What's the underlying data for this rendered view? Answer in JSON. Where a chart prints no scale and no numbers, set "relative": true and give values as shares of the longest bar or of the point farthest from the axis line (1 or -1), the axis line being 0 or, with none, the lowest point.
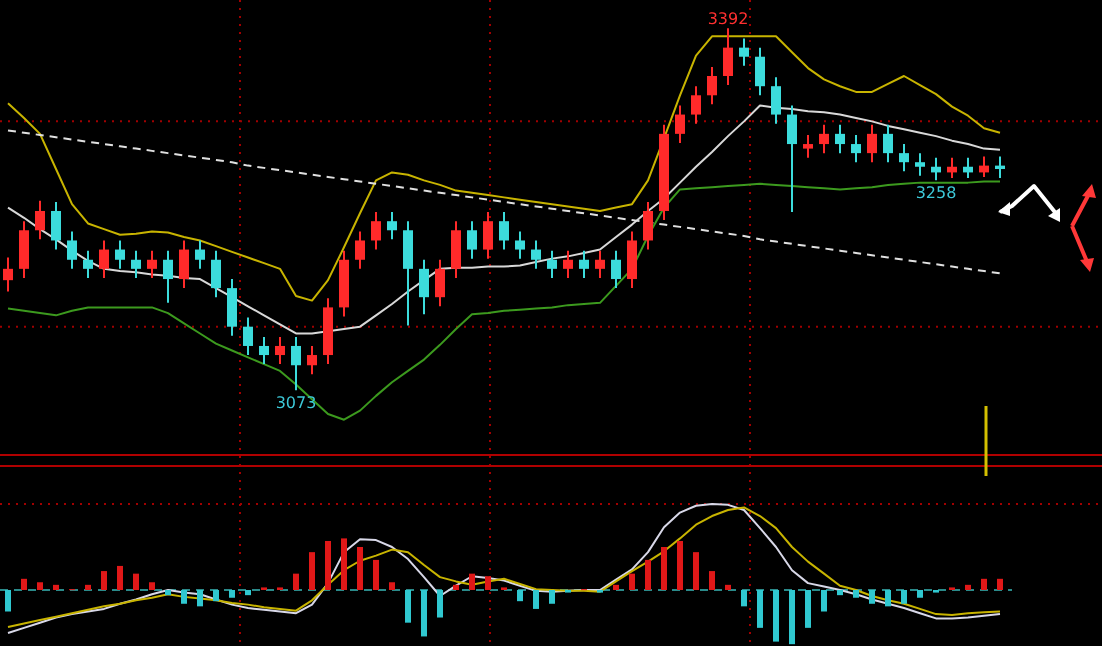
{
  "chart_data": [
    {
      "type": "candlestick",
      "grid": "y",
      "ylim": [
        3015,
        3417
      ],
      "yticks": [
        {
          "value": 3129,
          "label": null
        },
        {
          "value": 3310,
          "label": null
        }
      ],
      "categories": [
        null,
        null,
        null,
        null,
        null,
        null,
        null,
        null,
        null,
        null,
        null,
        null,
        null,
        null,
        null,
        null,
        null,
        null,
        null,
        null,
        null,
        null,
        null,
        null,
        null,
        null,
        null,
        null,
        null,
        null,
        null,
        null,
        null,
        null,
        null,
        null,
        null,
        null,
        null,
        null,
        null,
        null,
        null,
        null,
        null,
        null,
        null,
        null,
        null,
        null,
        null,
        null,
        null,
        null,
        null,
        null,
        null,
        null,
        null,
        null,
        null,
        null,
        null
      ],
      "ohlc": [
        [
          3170,
          3190,
          3160,
          3180
        ],
        [
          3180,
          3222,
          3172,
          3214
        ],
        [
          3214,
          3240,
          3206,
          3231
        ],
        [
          3231,
          3239,
          3197,
          3205
        ],
        [
          3205,
          3213,
          3180,
          3188
        ],
        [
          3188,
          3196,
          3172,
          3180
        ],
        [
          3180,
          3205,
          3172,
          3197
        ],
        [
          3197,
          3205,
          3180,
          3188
        ],
        [
          3188,
          3196,
          3172,
          3180
        ],
        [
          3180,
          3196,
          3172,
          3188
        ],
        [
          3188,
          3196,
          3150,
          3171
        ],
        [
          3171,
          3205,
          3163,
          3197
        ],
        [
          3197,
          3205,
          3180,
          3188
        ],
        [
          3188,
          3196,
          3155,
          3163
        ],
        [
          3163,
          3171,
          3121,
          3129
        ],
        [
          3129,
          3137,
          3104,
          3112
        ],
        [
          3112,
          3120,
          3096,
          3104
        ],
        [
          3104,
          3120,
          3096,
          3112
        ],
        [
          3112,
          3120,
          3073,
          3095
        ],
        [
          3095,
          3112,
          3087,
          3104
        ],
        [
          3104,
          3154,
          3096,
          3146
        ],
        [
          3146,
          3196,
          3138,
          3188
        ],
        [
          3188,
          3213,
          3180,
          3205
        ],
        [
          3205,
          3230,
          3197,
          3222
        ],
        [
          3222,
          3230,
          3206,
          3214
        ],
        [
          3214,
          3222,
          3130,
          3180
        ],
        [
          3180,
          3188,
          3140,
          3155
        ],
        [
          3155,
          3188,
          3147,
          3180
        ],
        [
          3180,
          3222,
          3172,
          3214
        ],
        [
          3214,
          3222,
          3189,
          3197
        ],
        [
          3197,
          3230,
          3189,
          3222
        ],
        [
          3222,
          3230,
          3197,
          3205
        ],
        [
          3205,
          3213,
          3189,
          3197
        ],
        [
          3197,
          3205,
          3180,
          3188
        ],
        [
          3188,
          3196,
          3172,
          3180
        ],
        [
          3180,
          3196,
          3172,
          3188
        ],
        [
          3188,
          3196,
          3172,
          3180
        ],
        [
          3180,
          3196,
          3172,
          3188
        ],
        [
          3188,
          3196,
          3163,
          3171
        ],
        [
          3171,
          3213,
          3163,
          3205
        ],
        [
          3205,
          3239,
          3197,
          3231
        ],
        [
          3231,
          3307,
          3223,
          3299
        ],
        [
          3299,
          3324,
          3291,
          3316
        ],
        [
          3316,
          3341,
          3308,
          3333
        ],
        [
          3333,
          3358,
          3325,
          3350
        ],
        [
          3350,
          3392,
          3342,
          3375
        ],
        [
          3375,
          3383,
          3359,
          3367
        ],
        [
          3367,
          3375,
          3333,
          3341
        ],
        [
          3341,
          3349,
          3308,
          3316
        ],
        [
          3316,
          3324,
          3230,
          3290
        ],
        [
          3286,
          3298,
          3278,
          3290
        ],
        [
          3290,
          3307,
          3282,
          3299
        ],
        [
          3299,
          3307,
          3282,
          3290
        ],
        [
          3290,
          3298,
          3274,
          3282
        ],
        [
          3282,
          3307,
          3274,
          3299
        ],
        [
          3299,
          3307,
          3274,
          3282
        ],
        [
          3282,
          3290,
          3266,
          3274
        ],
        [
          3274,
          3282,
          3262,
          3270
        ],
        [
          3270,
          3278,
          3258,
          3265
        ],
        [
          3265,
          3278,
          3260,
          3270
        ],
        [
          3270,
          3278,
          3260,
          3265
        ],
        [
          3265,
          3279,
          3261,
          3271
        ],
        [
          3271,
          3279,
          3260,
          3268
        ]
      ],
      "series": [
        {
          "type": "line",
          "color": "#d8d8d8",
          "values": [
            3234,
            3225,
            3215,
            3206,
            3196,
            3187,
            3180,
            3178,
            3177,
            3175,
            3174,
            3172,
            3171,
            3163,
            3155,
            3147,
            3139,
            3131,
            3123,
            3123,
            3125,
            3127,
            3129,
            3139,
            3149,
            3160,
            3170,
            3180,
            3181,
            3181,
            3182,
            3182,
            3183,
            3186,
            3189,
            3191,
            3194,
            3197,
            3208,
            3219,
            3231,
            3242,
            3256,
            3270,
            3283,
            3297,
            3310,
            3324,
            3322,
            3321,
            3319,
            3318,
            3316,
            3313,
            3310,
            3306,
            3303,
            3300,
            3297,
            3293,
            3290,
            3286,
            3285
          ]
        },
        {
          "type": "line",
          "color": "#c8b400",
          "values": [
            3326,
            3313,
            3299,
            3268,
            3237,
            3220,
            3215,
            3210,
            3211,
            3213,
            3212,
            3208,
            3205,
            3200,
            3195,
            3190,
            3185,
            3180,
            3156,
            3152,
            3170,
            3199,
            3229,
            3258,
            3265,
            3263,
            3258,
            3254,
            3249,
            3247,
            3245,
            3243,
            3241,
            3239,
            3237,
            3235,
            3233,
            3231,
            3234,
            3237,
            3258,
            3295,
            3333,
            3368,
            3385,
            3385,
            3385,
            3385,
            3385,
            3371,
            3357,
            3347,
            3341,
            3336,
            3336,
            3343,
            3350,
            3342,
            3334,
            3323,
            3315,
            3304,
            3300
          ]
        },
        {
          "type": "line",
          "color": "#3c9a1e",
          "values": [
            3145,
            3143,
            3141,
            3139,
            3143,
            3146,
            3146,
            3146,
            3146,
            3146,
            3141,
            3132,
            3123,
            3114,
            3108,
            3102,
            3096,
            3090,
            3078,
            3065,
            3052,
            3047,
            3055,
            3068,
            3080,
            3090,
            3100,
            3113,
            3127,
            3140,
            3141,
            3143,
            3144,
            3145,
            3146,
            3148,
            3149,
            3150,
            3165,
            3180,
            3209,
            3234,
            3250,
            3251,
            3252,
            3253,
            3254,
            3255,
            3254,
            3253,
            3252,
            3251,
            3250,
            3251,
            3252,
            3254,
            3255,
            3256,
            3256,
            3256,
            3256,
            3257,
            3257
          ]
        },
        {
          "type": "line",
          "color": "#e0e0e0",
          "line_style": "dashed",
          "values": [
            3302,
            3300,
            3298,
            3296,
            3294,
            3292,
            3290,
            3288,
            3286,
            3284,
            3282,
            3280,
            3278,
            3276,
            3274,
            3271,
            3269,
            3267,
            3265,
            3263,
            3261,
            3259,
            3257,
            3255,
            3253,
            3251,
            3249,
            3247,
            3245,
            3243,
            3241,
            3239,
            3237,
            3235,
            3233,
            3231,
            3229,
            3227,
            3225,
            3223,
            3221,
            3219,
            3217,
            3215,
            3213,
            3211,
            3209,
            3206,
            3204,
            3202,
            3200,
            3198,
            3196,
            3194,
            3192,
            3190,
            3188,
            3186,
            3184,
            3182,
            3180,
            3178,
            3176
          ]
        }
      ],
      "annotations": [
        {
          "text": "3073",
          "y": 3073
        },
        {
          "text": "3392",
          "y": 3392
        },
        {
          "text": "3258",
          "y": 3258
        }
      ]
    },
    {
      "type": "bar",
      "relative": true,
      "ref_lines": [
        {
          "axis": "y",
          "value": 0,
          "color": "#2a8a8a",
          "line_style": "dashed"
        }
      ],
      "colors": [
        "#30c8d0",
        "#e01818",
        "#e01818",
        "#e01818",
        "#e01818",
        "#e01818",
        "#e01818",
        "#e01818",
        "#e01818",
        "#e01818",
        "#30c8d0",
        "#30c8d0",
        "#30c8d0",
        "#30c8d0",
        "#30c8d0",
        "#30c8d0",
        "#e01818",
        "#e01818",
        "#e01818",
        "#e01818",
        "#e01818",
        "#e01818",
        "#e01818",
        "#e01818",
        "#e01818",
        "#30c8d0",
        "#30c8d0",
        "#30c8d0",
        "#e01818",
        "#e01818",
        "#e01818",
        "#e01818",
        "#30c8d0",
        "#30c8d0",
        "#30c8d0",
        "#30c8d0",
        "#e01818",
        "#30c8d0",
        "#e01818",
        "#e01818",
        "#e01818",
        "#e01818",
        "#e01818",
        "#e01818",
        "#e01818",
        "#e01818",
        "#30c8d0",
        "#30c8d0",
        "#30c8d0",
        "#30c8d0",
        "#30c8d0",
        "#30c8d0",
        "#30c8d0",
        "#30c8d0",
        "#30c8d0",
        "#30c8d0",
        "#30c8d0",
        "#30c8d0",
        "#30c8d0",
        "#e01818",
        "#e01818",
        "#e01818",
        "#e01818"
      ],
      "categories": [
        null,
        null,
        null,
        null,
        null,
        null,
        null,
        null,
        null,
        null,
        null,
        null,
        null,
        null,
        null,
        null,
        null,
        null,
        null,
        null,
        null,
        null,
        null,
        null,
        null,
        null,
        null,
        null,
        null,
        null,
        null,
        null,
        null,
        null,
        null,
        null,
        null,
        null,
        null,
        null,
        null,
        null,
        null,
        null,
        null,
        null,
        null,
        null,
        null,
        null,
        null,
        null,
        null,
        null,
        null,
        null,
        null,
        null,
        null,
        null,
        null,
        null,
        null
      ],
      "values": [
        -0.25,
        0.13,
        0.09,
        0.06,
        0.01,
        0.06,
        0.22,
        0.28,
        0.19,
        0.09,
        -0.06,
        -0.16,
        -0.19,
        -0.13,
        -0.09,
        -0.06,
        0.03,
        0.03,
        0.19,
        0.44,
        0.57,
        0.6,
        0.5,
        0.35,
        0.09,
        -0.38,
        -0.54,
        -0.32,
        0.06,
        0.19,
        0.16,
        0.03,
        -0.13,
        -0.22,
        -0.16,
        -0.03,
        0.01,
        -0.03,
        0.06,
        0.19,
        0.35,
        0.5,
        0.57,
        0.44,
        0.22,
        0.06,
        -0.19,
        -0.44,
        -0.6,
        -0.63,
        -0.44,
        -0.25,
        -0.06,
        -0.09,
        -0.16,
        -0.19,
        -0.16,
        -0.09,
        -0.03,
        0.03,
        0.06,
        0.13,
        0.13
      ],
      "series": [
        {
          "type": "line",
          "color": "#d8d8e8",
          "values": [
            -0.5,
            -0.44,
            -0.38,
            -0.32,
            -0.28,
            -0.25,
            -0.22,
            -0.16,
            -0.11,
            -0.05,
            0,
            -0.03,
            -0.05,
            -0.11,
            -0.17,
            -0.21,
            -0.23,
            -0.25,
            -0.27,
            -0.17,
            0.08,
            0.44,
            0.59,
            0.58,
            0.5,
            0.36,
            0.15,
            -0.07,
            0.05,
            0.16,
            0.14,
            0.11,
            0.05,
            -0.01,
            -0.02,
            -0.01,
            0,
            0,
            0.12,
            0.24,
            0.44,
            0.73,
            0.9,
            0.98,
            1,
            0.99,
            0.93,
            0.72,
            0.5,
            0.23,
            0.08,
            0.04,
            0,
            -0.05,
            -0.11,
            -0.16,
            -0.21,
            -0.27,
            -0.33,
            -0.33,
            -0.32,
            -0.3,
            -0.28
          ]
        },
        {
          "type": "line",
          "color": "#c8b400",
          "values": [
            -0.43,
            -0.39,
            -0.35,
            -0.31,
            -0.27,
            -0.23,
            -0.19,
            -0.16,
            -0.12,
            -0.09,
            -0.05,
            -0.08,
            -0.1,
            -0.12,
            -0.15,
            -0.17,
            -0.2,
            -0.22,
            -0.24,
            -0.12,
            0.06,
            0.23,
            0.34,
            0.4,
            0.47,
            0.44,
            0.29,
            0.15,
            0.1,
            0.06,
            0.1,
            0.13,
            0.07,
            0.01,
            0,
            -0.01,
            -0.01,
            -0.02,
            0.1,
            0.22,
            0.33,
            0.45,
            0.6,
            0.76,
            0.86,
            0.93,
            0.96,
            0.86,
            0.72,
            0.5,
            0.33,
            0.19,
            0.05,
            0,
            -0.07,
            -0.12,
            -0.16,
            -0.22,
            -0.28,
            -0.29,
            -0.27,
            -0.26,
            -0.25
          ]
        }
      ]
    }
  ]
}
